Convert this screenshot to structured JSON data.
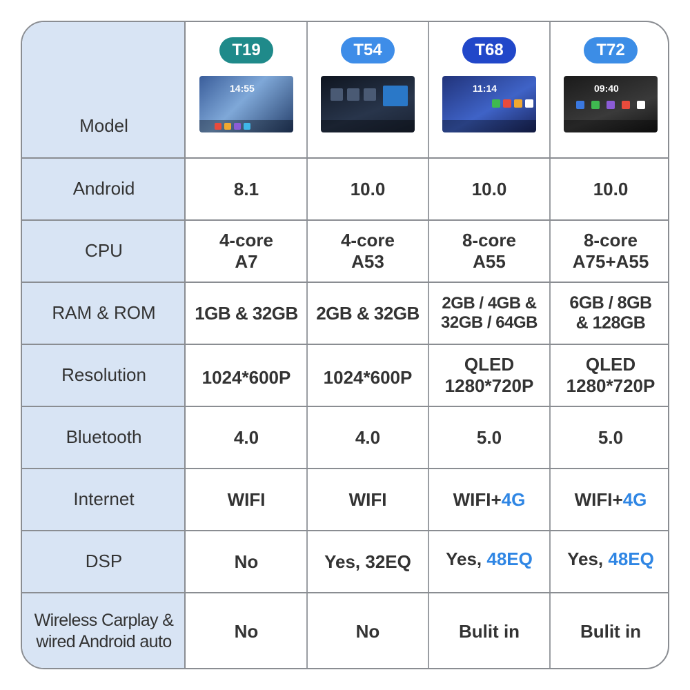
{
  "models": [
    {
      "name": "T19",
      "badge_color": "#1f8a8a",
      "screen_time": "14:55"
    },
    {
      "name": "T54",
      "badge_color": "#3e8de8",
      "screen_time": ""
    },
    {
      "name": "T68",
      "badge_color": "#2147c9",
      "screen_time": "11:14"
    },
    {
      "name": "T72",
      "badge_color": "#3c8de6",
      "screen_time": "09:40"
    }
  ],
  "labels": {
    "model": "Model",
    "android": "Android",
    "cpu": "CPU",
    "ram": "RAM & ROM",
    "resolution": "Resolution",
    "bluetooth": "Bluetooth",
    "internet": "Internet",
    "dsp": "DSP",
    "carplay_1": "Wireless Carplay &",
    "carplay_2": "wired Android auto"
  },
  "android": [
    "8.1",
    "10.0",
    "10.0",
    "10.0"
  ],
  "cpu": [
    {
      "l1": "4-core",
      "l2": "A7"
    },
    {
      "l1": "4-core",
      "l2": "A53"
    },
    {
      "l1": "8-core",
      "l2": "A55"
    },
    {
      "l1": "8-core",
      "l2": "A75+A55"
    }
  ],
  "ram": [
    {
      "l1": "1GB & 32GB",
      "l2": ""
    },
    {
      "l1": "2GB & 32GB",
      "l2": ""
    },
    {
      "l1": "2GB / 4GB &",
      "l2": "32GB / 64GB"
    },
    {
      "l1": "6GB / 8GB",
      "l2": "& 128GB"
    }
  ],
  "resolution": [
    {
      "l1": "1024*600P",
      "l2": ""
    },
    {
      "l1": "1024*600P",
      "l2": ""
    },
    {
      "l1": "QLED",
      "l2": "1280*720P"
    },
    {
      "l1": "QLED",
      "l2": "1280*720P"
    }
  ],
  "bluetooth": [
    "4.0",
    "4.0",
    "5.0",
    "5.0"
  ],
  "internet": [
    {
      "a": "WIFI",
      "b": ""
    },
    {
      "a": "WIFI",
      "b": ""
    },
    {
      "a": "WIFI+",
      "b": "4G"
    },
    {
      "a": "WIFI+",
      "b": "4G"
    }
  ],
  "dsp": [
    {
      "a": "No",
      "b": ""
    },
    {
      "a": "Yes, 32EQ",
      "b": ""
    },
    {
      "a": "Yes, ",
      "b": "48EQ"
    },
    {
      "a": "Yes, ",
      "b": "48EQ"
    }
  ],
  "carplay": [
    "No",
    "No",
    "Bulit in",
    "Bulit in"
  ],
  "colors": {
    "red": "#d3201f",
    "blue": "#2f86e4",
    "text": "#333333",
    "label_bg": "#d8e4f4",
    "border": "#8a8d92"
  }
}
